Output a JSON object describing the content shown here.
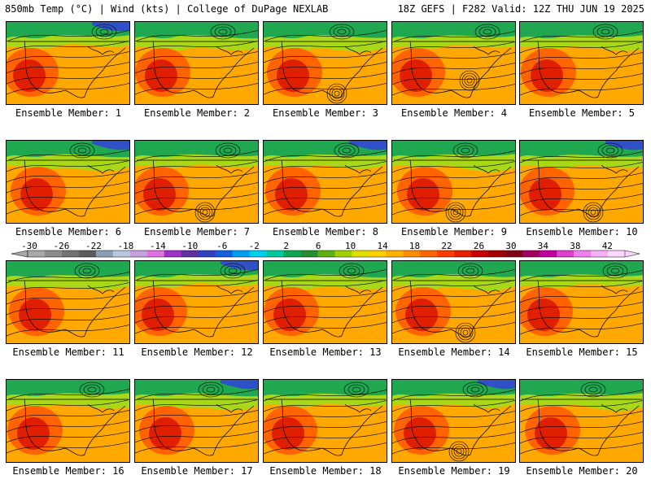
{
  "header": {
    "left": "850mb Temp (°C) | Wind (kts) | College of DuPage NEXLAB",
    "right": "18Z GEFS | F282 Valid: 12Z THU JUN 19 2025"
  },
  "members": [
    {
      "label": "Ensemble Member: 1",
      "low": null
    },
    {
      "label": "Ensemble Member: 2",
      "low": null
    },
    {
      "label": "Ensemble Member: 3",
      "low": "gulf"
    },
    {
      "label": "Ensemble Member: 4",
      "low": "atlantic"
    },
    {
      "label": "Ensemble Member: 5",
      "low": null
    },
    {
      "label": "Ensemble Member: 6",
      "low": null
    },
    {
      "label": "Ensemble Member: 7",
      "low": "gulf"
    },
    {
      "label": "Ensemble Member: 8",
      "low": null
    },
    {
      "label": "Ensemble Member: 9",
      "low": "gulf"
    },
    {
      "label": "Ensemble Member: 10",
      "low": "gulf"
    },
    {
      "label": "Ensemble Member: 11",
      "low": null
    },
    {
      "label": "Ensemble Member: 12",
      "low": null
    },
    {
      "label": "Ensemble Member: 13",
      "low": null
    },
    {
      "label": "Ensemble Member: 14",
      "low": "gulf"
    },
    {
      "label": "Ensemble Member: 15",
      "low": null
    },
    {
      "label": "Ensemble Member: 16",
      "low": null
    },
    {
      "label": "Ensemble Member: 17",
      "low": null
    },
    {
      "label": "Ensemble Member: 18",
      "low": null
    },
    {
      "label": "Ensemble Member: 19",
      "low": "gulf"
    },
    {
      "label": "Ensemble Member: 20",
      "low": null
    }
  ],
  "colorbar": {
    "ticks": [
      "-30",
      "-26",
      "-22",
      "-18",
      "-14",
      "-10",
      "-6",
      "-2",
      "2",
      "6",
      "10",
      "14",
      "18",
      "22",
      "26",
      "30",
      "34",
      "38",
      "42"
    ],
    "colors": [
      "#a8a8a8",
      "#8c8c8c",
      "#747474",
      "#5c5c5c",
      "#8aa0b4",
      "#b8c8dc",
      "#c8a0e0",
      "#e070e0",
      "#a030c8",
      "#6030a0",
      "#3040c0",
      "#1060e0",
      "#00a0f0",
      "#00d0f0",
      "#00c8a0",
      "#10a850",
      "#209030",
      "#60b010",
      "#a0d000",
      "#e0e000",
      "#ffd000",
      "#ffb000",
      "#ff8c00",
      "#ff6400",
      "#ff3c00",
      "#e61e00",
      "#c80000",
      "#a00000",
      "#800018",
      "#a00060",
      "#c000a0",
      "#e040d0",
      "#f080f0",
      "#f8b0f8",
      "#ffd8ff"
    ]
  },
  "map_colors": {
    "cold": "#3050c8",
    "cool": "#20a850",
    "mild": "#a8d818",
    "warm": "#ffa800",
    "hot": "#ff6400",
    "vhot": "#e01e00",
    "contour": "#000000"
  }
}
